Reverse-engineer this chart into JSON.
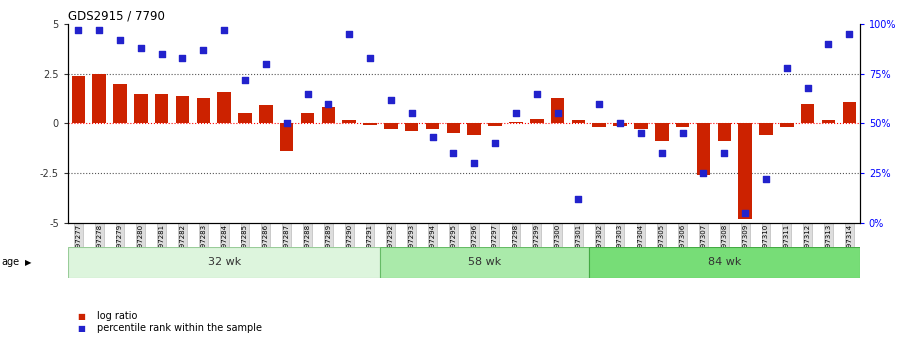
{
  "title": "GDS2915 / 7790",
  "samples": [
    "GSM97277",
    "GSM97278",
    "GSM97279",
    "GSM97280",
    "GSM97281",
    "GSM97282",
    "GSM97283",
    "GSM97284",
    "GSM97285",
    "GSM97286",
    "GSM97287",
    "GSM97288",
    "GSM97289",
    "GSM97290",
    "GSM97291",
    "GSM97292",
    "GSM97293",
    "GSM97294",
    "GSM97295",
    "GSM97296",
    "GSM97297",
    "GSM97298",
    "GSM97299",
    "GSM97300",
    "GSM97301",
    "GSM97302",
    "GSM97303",
    "GSM97304",
    "GSM97305",
    "GSM97306",
    "GSM97307",
    "GSM97308",
    "GSM97309",
    "GSM97310",
    "GSM97311",
    "GSM97312",
    "GSM97313",
    "GSM97314"
  ],
  "log_ratio": [
    2.4,
    2.5,
    2.0,
    1.5,
    1.5,
    1.4,
    1.3,
    1.6,
    0.5,
    0.9,
    -1.4,
    0.5,
    0.8,
    0.15,
    -0.1,
    -0.3,
    -0.4,
    -0.3,
    -0.5,
    -0.6,
    -0.15,
    0.05,
    0.2,
    1.3,
    0.15,
    -0.2,
    -0.15,
    -0.3,
    -0.9,
    -0.2,
    -2.6,
    -0.9,
    -4.8,
    -0.6,
    -0.2,
    1.0,
    0.15,
    1.1
  ],
  "percentile": [
    97,
    97,
    92,
    88,
    85,
    83,
    87,
    97,
    72,
    80,
    50,
    65,
    60,
    95,
    83,
    62,
    55,
    43,
    35,
    30,
    40,
    55,
    65,
    55,
    12,
    60,
    50,
    45,
    35,
    45,
    25,
    35,
    5,
    22,
    78,
    68,
    90,
    95
  ],
  "age_groups": [
    {
      "label": "32 wk",
      "start": 0,
      "end": 15
    },
    {
      "label": "58 wk",
      "start": 15,
      "end": 25
    },
    {
      "label": "84 wk",
      "start": 25,
      "end": 38
    }
  ],
  "age_group_colors": [
    "#ddf5dd",
    "#aaeaaa",
    "#77dd77"
  ],
  "age_group_edge_colors": [
    "#99cc99",
    "#66bb66",
    "#44aa44"
  ],
  "ylim_left": [
    -5,
    5
  ],
  "ylim_right": [
    0,
    100
  ],
  "bar_color": "#cc2200",
  "scatter_color": "#2222cc",
  "bar_width": 0.65,
  "scatter_size": 16,
  "tick_bg_color": "#dddddd",
  "tick_bg_edge": "#bbbbbb"
}
